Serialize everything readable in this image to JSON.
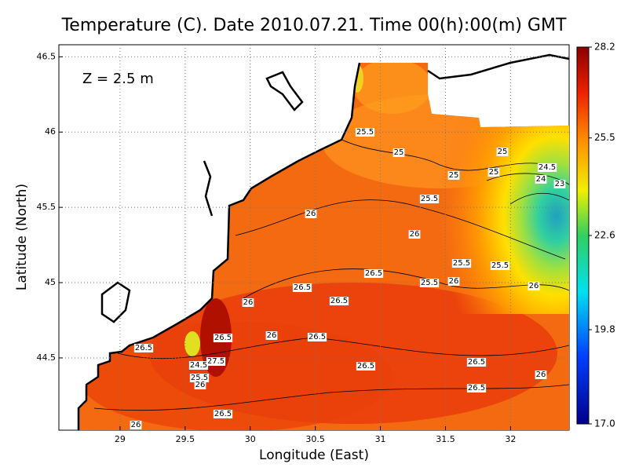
{
  "title": "Temperature (C). Date 2010.07.21. Time 00(h):00(m) GMT",
  "depth_label": "Z = 2.5 m",
  "x_axis": {
    "label": "Longitude (East)",
    "lim": [
      28.53,
      32.45
    ],
    "ticks": [
      29,
      29.5,
      30,
      30.5,
      31,
      31.5,
      32
    ]
  },
  "y_axis": {
    "label": "Latitude (North)",
    "lim": [
      44.02,
      46.58
    ],
    "ticks": [
      44.5,
      45,
      45.5,
      46,
      46.5
    ]
  },
  "colorbar": {
    "lim": [
      17,
      28.2
    ],
    "ticks": [
      {
        "value": 17,
        "label": "17.0"
      },
      19.8,
      22.6,
      25.5,
      28.2
    ]
  },
  "contour_labels": [
    25.5,
    25,
    25,
    25,
    25,
    24.5,
    24,
    23,
    25.5,
    26,
    26,
    25.5,
    25.5,
    26.5,
    25.5,
    26,
    26.5,
    26,
    26.5,
    26,
    26,
    26.5,
    26.5,
    26.5,
    27.5,
    24.5,
    25.5,
    26,
    26.5,
    26.5,
    26,
    26.5,
    26.5,
    26
  ]
}
